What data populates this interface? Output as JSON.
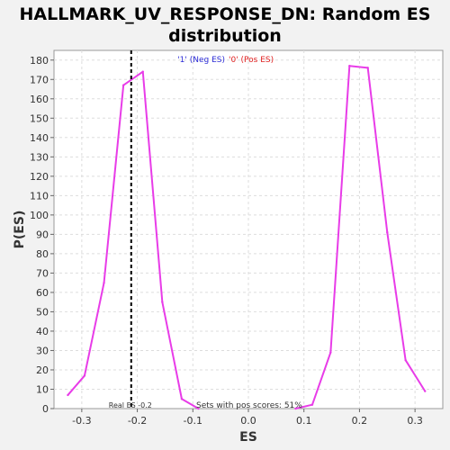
{
  "chart_data": {
    "type": "line",
    "title_line1": "HALLMARK_UV_RESPONSE_DN: Random ES",
    "title_line2": "distribution",
    "xlabel": "ES",
    "ylabel": "P(ES)",
    "xlim": [
      -0.35,
      0.35
    ],
    "ylim": [
      0,
      185
    ],
    "xticks": [
      -0.3,
      -0.2,
      -0.1,
      0,
      0.1,
      0.2,
      0.3
    ],
    "xtick_labels": [
      "-0.3",
      "-0.2",
      "-0.1",
      "0.0",
      "0.1",
      "0.2",
      "0.3"
    ],
    "yticks": [
      0,
      10,
      20,
      30,
      40,
      50,
      60,
      70,
      80,
      90,
      100,
      110,
      120,
      130,
      140,
      150,
      160,
      170,
      180
    ],
    "grid": true,
    "series": [
      {
        "color": "#e83ce8",
        "x": [
          -0.325,
          -0.295,
          -0.26,
          -0.225,
          -0.19,
          -0.155,
          -0.12,
          -0.09
        ],
        "y": [
          7,
          17,
          65,
          167,
          174,
          55,
          5,
          0
        ]
      },
      {
        "color": "#e83ce8",
        "x": [
          0.085,
          0.115,
          0.148,
          0.182,
          0.215,
          0.25,
          0.283,
          0.318
        ],
        "y": [
          0,
          2,
          29,
          177,
          176,
          91,
          25,
          9
        ]
      }
    ],
    "real_es": -0.211,
    "real_es_label": "Real ES -0.2",
    "pos_scores_label": "Sets with pos scores: 51%",
    "legend": {
      "neg_label": "'1' (Neg ES)",
      "pos_label": "'0' (Pos ES)",
      "neg_color": "#2b2bd6",
      "pos_color": "#e02020",
      "placement": "top-center"
    }
  }
}
